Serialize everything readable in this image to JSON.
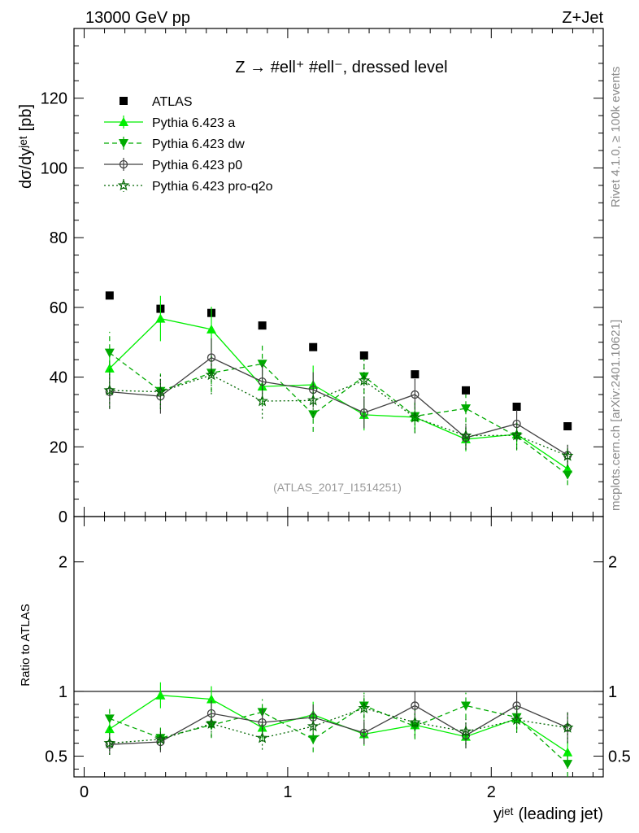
{
  "header": {
    "energy_label": "13000 GeV pp",
    "process_label": "Z+Jet",
    "plot_title": "Z → #ell⁺ #ell⁻, dressed level",
    "watermark": "(ATLAS_2017_I1514251)",
    "side_label_top": "Rivet 4.1.0, ≥ 100k events",
    "side_label_bottom": "mcplots.cern.ch [arXiv:2401.10621]"
  },
  "chart_data": [
    {
      "type": "line",
      "panel": "main",
      "ylabel": "dσ/dyʲᵉᵗ [pb]",
      "xlabel": "yʲᵉᵗ (leading jet)",
      "xlim": [
        -0.05,
        2.55
      ],
      "ylim": [
        0,
        140
      ],
      "x_ticks": [
        0,
        1,
        2
      ],
      "x_tick_labels": [
        "0",
        "1",
        "2"
      ],
      "y_ticks": [
        0,
        20,
        40,
        60,
        80,
        100,
        120
      ],
      "y_tick_labels": [
        "0",
        "20",
        "40",
        "60",
        "80",
        "100",
        "120"
      ],
      "x": [
        0.125,
        0.375,
        0.625,
        0.875,
        1.125,
        1.375,
        1.625,
        1.875,
        2.125,
        2.375
      ],
      "series": [
        {
          "name": "ATLAS",
          "style": "data",
          "color": "#000000",
          "values": [
            63.4,
            59.6,
            58.4,
            54.8,
            48.6,
            46.2,
            40.8,
            36.2,
            31.5,
            25.9
          ],
          "errors": [
            0,
            0,
            0,
            0,
            0,
            0,
            0,
            0,
            0,
            0
          ]
        },
        {
          "name": "Pythia 6.423 a",
          "style": "solid-triangle",
          "color": "#00ee00",
          "values": [
            42.5,
            56.8,
            53.7,
            37.3,
            37.8,
            29.2,
            28.5,
            22.2,
            23.6,
            13.7
          ],
          "errors": [
            5.0,
            6.5,
            6.5,
            5.5,
            5.5,
            4.5,
            4.5,
            3.5,
            3.5,
            2.5
          ]
        },
        {
          "name": "Pythia 6.423 dw",
          "style": "dashed-invtriangle",
          "color": "#00aa00",
          "values": [
            47.0,
            36.0,
            41.2,
            43.8,
            29.3,
            40.2,
            28.8,
            31.0,
            23.0,
            12.0
          ],
          "errors": [
            6.0,
            5.0,
            5.5,
            5.5,
            5.0,
            5.0,
            4.5,
            4.0,
            4.0,
            3.0
          ]
        },
        {
          "name": "Pythia 6.423 p0",
          "style": "solid-circle",
          "color": "#404040",
          "values": [
            35.8,
            34.5,
            45.6,
            38.7,
            36.4,
            29.8,
            35.0,
            22.6,
            26.6,
            17.6
          ],
          "errors": [
            5.0,
            5.0,
            5.5,
            5.0,
            5.0,
            4.5,
            4.5,
            3.5,
            4.0,
            3.0
          ]
        },
        {
          "name": "Pythia 6.423 pro-q2o",
          "style": "dotted-star",
          "color": "#006600",
          "values": [
            36.2,
            35.8,
            40.6,
            33.1,
            33.3,
            39.0,
            28.4,
            23.2,
            23.3,
            17.4
          ],
          "errors": [
            5.0,
            5.0,
            5.5,
            5.0,
            5.0,
            5.0,
            4.5,
            4.0,
            4.0,
            3.0
          ]
        }
      ],
      "legend_position": "top-left"
    },
    {
      "type": "line",
      "panel": "ratio",
      "ylabel": "Ratio to ATLAS",
      "ylim": [
        0.34,
        2.35
      ],
      "y_ticks": [
        0.5,
        1,
        2
      ],
      "y_tick_labels": [
        "0.5",
        "1",
        "2"
      ],
      "reference_line": 1,
      "x": [
        0.125,
        0.375,
        0.625,
        0.875,
        1.125,
        1.375,
        1.625,
        1.875,
        2.125,
        2.375
      ],
      "series": [
        {
          "name": "Pythia 6.423 a",
          "color": "#00ee00",
          "values": [
            0.71,
            0.97,
            0.94,
            0.72,
            0.82,
            0.67,
            0.74,
            0.65,
            0.79,
            0.53
          ],
          "errors": [
            0.08,
            0.1,
            0.1,
            0.09,
            0.1,
            0.09,
            0.1,
            0.09,
            0.1,
            0.09
          ]
        },
        {
          "name": "Pythia 6.423 dw",
          "color": "#00aa00",
          "values": [
            0.79,
            0.64,
            0.74,
            0.84,
            0.63,
            0.89,
            0.73,
            0.89,
            0.8,
            0.44
          ],
          "errors": [
            0.09,
            0.08,
            0.1,
            0.1,
            0.1,
            0.1,
            0.1,
            0.1,
            0.1,
            0.1
          ]
        },
        {
          "name": "Pythia 6.423 p0",
          "color": "#404040",
          "values": [
            0.59,
            0.61,
            0.83,
            0.76,
            0.8,
            0.68,
            0.89,
            0.66,
            0.89,
            0.72
          ],
          "errors": [
            0.08,
            0.08,
            0.1,
            0.1,
            0.1,
            0.09,
            0.11,
            0.1,
            0.11,
            0.12
          ]
        },
        {
          "name": "Pythia 6.423 pro-q2o",
          "color": "#006600",
          "values": [
            0.6,
            0.63,
            0.75,
            0.64,
            0.73,
            0.87,
            0.76,
            0.69,
            0.78,
            0.72
          ],
          "errors": [
            0.09,
            0.08,
            0.1,
            0.09,
            0.1,
            0.1,
            0.1,
            0.1,
            0.1,
            0.12
          ]
        }
      ]
    }
  ]
}
